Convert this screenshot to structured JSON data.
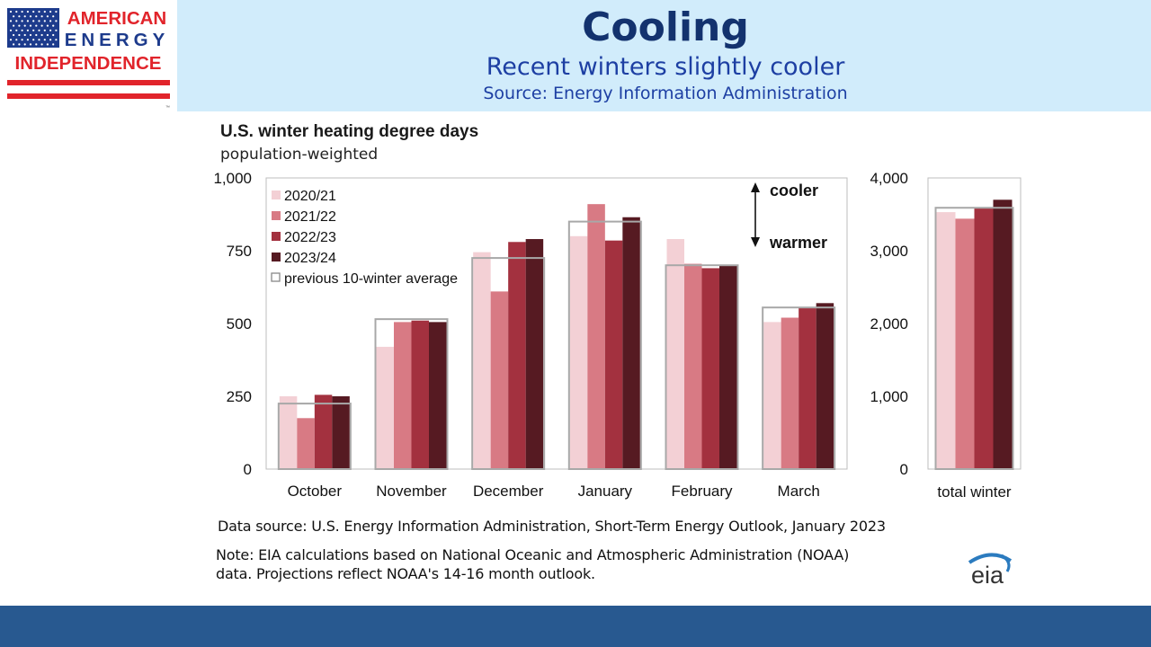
{
  "header": {
    "logo_lines": [
      "AMERICAN",
      "ENERGY",
      "INDEPENDENCE"
    ],
    "logo_tm": "™",
    "title": "Cooling",
    "subtitle": "Recent winters slightly cooler",
    "source": "Source: Energy Information Administration"
  },
  "colors": {
    "header_band": "#d1ecfb",
    "title_text": "#13326e",
    "subtitle_text": "#1d3fa3",
    "footer_band": "#285990",
    "logo_red": "#e1242b",
    "logo_blue": "#1d3b8c"
  },
  "chart_data": [
    {
      "type": "bar",
      "title": "U.S. winter heating degree days",
      "subtitle": "population-weighted",
      "categories": [
        "October",
        "November",
        "December",
        "January",
        "February",
        "March"
      ],
      "series": [
        {
          "name": "2020/21",
          "color": "#f3d0d5",
          "values": [
            250,
            420,
            745,
            800,
            790,
            505
          ]
        },
        {
          "name": "2021/22",
          "color": "#d87a84",
          "values": [
            175,
            505,
            610,
            910,
            705,
            520
          ]
        },
        {
          "name": "2022/23",
          "color": "#a3313f",
          "values": [
            255,
            510,
            780,
            785,
            690,
            555
          ]
        },
        {
          "name": "2023/24",
          "color": "#561a22",
          "values": [
            250,
            505,
            790,
            865,
            700,
            570
          ]
        }
      ],
      "average": {
        "name": "previous 10-winter average",
        "values": [
          225,
          515,
          725,
          850,
          700,
          555
        ]
      },
      "ylim": [
        0,
        1000
      ],
      "yticks": [
        "0",
        "250",
        "500",
        "750",
        "1,000"
      ],
      "annotations": {
        "up": "cooler",
        "down": "warmer"
      },
      "grid": false,
      "legend_position": "top-left"
    },
    {
      "type": "bar",
      "categories": [
        "total winter"
      ],
      "series": [
        {
          "name": "2020/21",
          "values": [
            3530
          ]
        },
        {
          "name": "2021/22",
          "values": [
            3440
          ]
        },
        {
          "name": "2022/23",
          "values": [
            3590
          ]
        },
        {
          "name": "2023/24",
          "values": [
            3700
          ]
        }
      ],
      "average": {
        "name": "previous 10-winter average",
        "values": [
          3590
        ]
      },
      "ylim": [
        0,
        4000
      ],
      "yticks": [
        "0",
        "1,000",
        "2,000",
        "3,000",
        "4,000"
      ]
    }
  ],
  "notes": {
    "data_source": "Data source: U.S. Energy Information Administration, Short-Term Energy Outlook, January 2023",
    "note_line1": "Note: EIA calculations based on National Oceanic and Atmospheric Administration (NOAA)",
    "note_line2": "data. Projections reflect NOAA's 14-16 month outlook.",
    "eia_logo": "eia"
  }
}
